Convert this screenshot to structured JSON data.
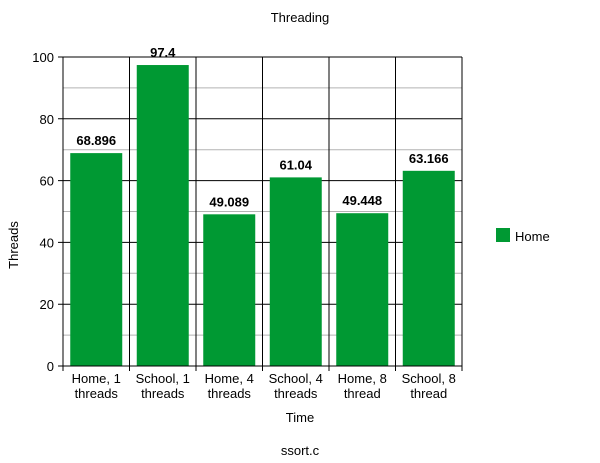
{
  "chart_data": {
    "type": "bar",
    "title": "Threading",
    "subtitle": "ssort.c",
    "xlabel": "Time",
    "ylabel": "Threads",
    "ylim": [
      0,
      100
    ],
    "yticks": [
      0,
      20,
      40,
      60,
      80,
      100
    ],
    "ytick_labels": [
      "0",
      "20",
      "40",
      "60",
      "80",
      "100"
    ],
    "minor_gridlines": true,
    "grid": true,
    "legend_position": "right",
    "categories": [
      [
        "Home, 1",
        "threads"
      ],
      [
        "School, 1",
        "threads"
      ],
      [
        "Home, 4",
        "threads"
      ],
      [
        "School, 4",
        "threads"
      ],
      [
        "Home, 8",
        "thread"
      ],
      [
        "School, 8",
        "thread"
      ]
    ],
    "series": [
      {
        "name": "Home",
        "color": "#009933",
        "values": [
          68.896,
          97.4,
          49.089,
          61.04,
          49.448,
          63.166
        ],
        "labels": [
          "68.896",
          "97.4",
          "49.089",
          "61.04",
          "49.448",
          "63.166"
        ]
      }
    ]
  }
}
